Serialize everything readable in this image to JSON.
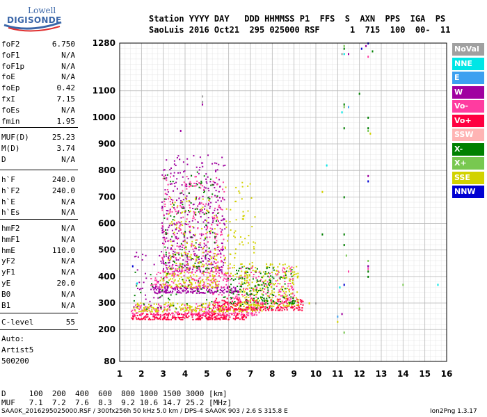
{
  "logo": {
    "line1": "Lowell",
    "line2": "DIGISONDE"
  },
  "header": {
    "line1": "Station YYYY DAY   DDD HHMMSS P1  FFS  S  AXN  PPS  IGA  PS",
    "line2": "SaoLuis 2016 Oct21  295 025000 RSF      1  715  100  00-  11"
  },
  "params_group1": [
    {
      "name": "foF2",
      "value": "6.750"
    },
    {
      "name": "foF1",
      "value": "N/A"
    },
    {
      "name": "foF1p",
      "value": "N/A"
    },
    {
      "name": "foE",
      "value": "N/A"
    },
    {
      "name": "foEp",
      "value": "0.42"
    },
    {
      "name": "fxI",
      "value": "7.15"
    },
    {
      "name": "foEs",
      "value": "N/A"
    },
    {
      "name": "fmin",
      "value": "1.95"
    }
  ],
  "params_group2": [
    {
      "name": "MUF(D)",
      "value": "25.23"
    },
    {
      "name": "M(D)",
      "value": "3.74"
    },
    {
      "name": "D",
      "value": "N/A"
    }
  ],
  "params_group3": [
    {
      "name": "h`F",
      "value": "240.0"
    },
    {
      "name": "h`F2",
      "value": "240.0"
    },
    {
      "name": "h`E",
      "value": "N/A"
    },
    {
      "name": "h`Es",
      "value": "N/A"
    }
  ],
  "params_group4": [
    {
      "name": "hmF2",
      "value": "N/A"
    },
    {
      "name": "hmF1",
      "value": "N/A"
    },
    {
      "name": "hmE",
      "value": "110.0"
    },
    {
      "name": "yF2",
      "value": "N/A"
    },
    {
      "name": "yF1",
      "value": "N/A"
    },
    {
      "name": "yE",
      "value": "20.0"
    },
    {
      "name": "B0",
      "value": "N/A"
    },
    {
      "name": "B1",
      "value": "N/A"
    }
  ],
  "clevel": {
    "name": "C-level",
    "value": "55"
  },
  "autoscale": {
    "line1": "Auto:",
    "line2": "Artist5",
    "line3": "500200"
  },
  "legend": [
    {
      "label": "NoVal",
      "color": "#a0a0a0"
    },
    {
      "label": "NNE",
      "color": "#00e6e6"
    },
    {
      "label": "E",
      "color": "#3ca0f0"
    },
    {
      "label": "W",
      "color": "#a000a0"
    },
    {
      "label": "Vo-",
      "color": "#ff3ca0"
    },
    {
      "label": "Vo+",
      "color": "#ff0040"
    },
    {
      "label": "SSW",
      "color": "#ffb4b4"
    },
    {
      "label": "X-",
      "color": "#008000"
    },
    {
      "label": "X+",
      "color": "#78c850"
    },
    {
      "label": "SSE",
      "color": "#d2d200"
    },
    {
      "label": "NNW",
      "color": "#0000d2"
    }
  ],
  "footer": {
    "d_line": "D     100  200  400  600  800 1000 1500 3000 [km]",
    "muf_line": "MUF   7.1  7.2  7.6  8.3  9.2 10.6 14.7 25.2 [MHz]",
    "provenance": "SAA0K_2016295025000.RSF / 300fx256h 50 kHz 5.0 km / DPS-4 SAA0K 903 / 2.6 S 315.8 E",
    "version": "Ion2Png 1.3.17"
  },
  "chart_data": {
    "type": "scatter",
    "x_ticks": [
      1,
      2,
      3,
      4,
      5,
      6,
      7,
      8,
      9,
      10,
      11,
      12,
      13,
      14,
      15,
      16
    ],
    "y_ticks": [
      80,
      200,
      300,
      400,
      500,
      600,
      700,
      800,
      900,
      1000,
      1100,
      1280
    ],
    "x_range": [
      1,
      16
    ],
    "y_range": [
      80,
      1280
    ],
    "grid": true,
    "legend_position": "right",
    "regions": [
      {
        "series": "Vo+",
        "x": [
          1.5,
          6.8
        ],
        "y": [
          240,
          265
        ],
        "count": 260
      },
      {
        "series": "Vo-",
        "x": [
          1.5,
          7.5
        ],
        "y": [
          255,
          300
        ],
        "count": 240
      },
      {
        "series": "SSE",
        "x": [
          1.6,
          7.5
        ],
        "y": [
          270,
          305
        ],
        "count": 200
      },
      {
        "series": "Vo+",
        "x": [
          5.2,
          9.4
        ],
        "y": [
          275,
          320
        ],
        "count": 200
      },
      {
        "series": "SSE",
        "x": [
          6.5,
          9.2
        ],
        "y": [
          290,
          450
        ],
        "count": 240
      },
      {
        "series": "Vo-",
        "x": [
          5.0,
          9.0
        ],
        "y": [
          300,
          440
        ],
        "count": 180
      },
      {
        "series": "X-",
        "x": [
          6.0,
          9.0
        ],
        "y": [
          300,
          440
        ],
        "count": 120
      },
      {
        "series": "W",
        "x": [
          2.4,
          6.5
        ],
        "y": [
          340,
          365
        ],
        "count": 180
      },
      {
        "series": "Vo-",
        "x": [
          2.4,
          6.0
        ],
        "y": [
          360,
          420
        ],
        "count": 140
      },
      {
        "series": "SSE",
        "x": [
          2.8,
          5.5
        ],
        "y": [
          360,
          420
        ],
        "count": 100
      },
      {
        "series": "W",
        "x": [
          2.9,
          5.8
        ],
        "y": [
          420,
          860
        ],
        "count": 420
      },
      {
        "series": "Vo-",
        "x": [
          2.9,
          5.8
        ],
        "y": [
          420,
          780
        ],
        "count": 260
      },
      {
        "series": "X-",
        "x": [
          3.0,
          5.5
        ],
        "y": [
          430,
          800
        ],
        "count": 100
      },
      {
        "series": "SSE",
        "x": [
          3.2,
          5.5
        ],
        "y": [
          430,
          700
        ],
        "count": 120
      },
      {
        "series": "SSE",
        "x": [
          5.8,
          7.2
        ],
        "y": [
          400,
          760
        ],
        "count": 80
      },
      {
        "series": "W",
        "x": [
          1.5,
          3.0
        ],
        "y": [
          280,
          500
        ],
        "count": 40
      },
      {
        "series": "X-",
        "x": [
          1.5,
          8.0
        ],
        "y": [
          280,
          440
        ],
        "count": 80
      }
    ],
    "points": [
      {
        "series": "NNE",
        "x": 11.2,
        "y": 1020
      },
      {
        "series": "NNE",
        "x": 11.3,
        "y": 1240
      },
      {
        "series": "NNE",
        "x": 10.5,
        "y": 820
      },
      {
        "series": "NNE",
        "x": 11.1,
        "y": 360
      },
      {
        "series": "NNE",
        "x": 15.6,
        "y": 370
      },
      {
        "series": "NNE",
        "x": 1.8,
        "y": 375
      },
      {
        "series": "X-",
        "x": 11.3,
        "y": 1260
      },
      {
        "series": "X-",
        "x": 11.3,
        "y": 1050
      },
      {
        "series": "X-",
        "x": 11.3,
        "y": 960
      },
      {
        "series": "X-",
        "x": 11.3,
        "y": 700
      },
      {
        "series": "X-",
        "x": 11.3,
        "y": 560
      },
      {
        "series": "X-",
        "x": 11.3,
        "y": 520
      },
      {
        "series": "X-",
        "x": 12.0,
        "y": 1090
      },
      {
        "series": "X-",
        "x": 12.4,
        "y": 1000
      },
      {
        "series": "X-",
        "x": 12.4,
        "y": 960
      },
      {
        "series": "X-",
        "x": 12.4,
        "y": 420
      },
      {
        "series": "X-",
        "x": 12.4,
        "y": 400
      },
      {
        "series": "X-",
        "x": 10.3,
        "y": 560
      },
      {
        "series": "X-",
        "x": 12.6,
        "y": 1250
      },
      {
        "series": "X+",
        "x": 11.3,
        "y": 1270
      },
      {
        "series": "X+",
        "x": 11.3,
        "y": 1040
      },
      {
        "series": "X+",
        "x": 11.4,
        "y": 480
      },
      {
        "series": "X+",
        "x": 12.4,
        "y": 950
      },
      {
        "series": "X+",
        "x": 12.4,
        "y": 460
      },
      {
        "series": "X+",
        "x": 11.3,
        "y": 190
      },
      {
        "series": "X+",
        "x": 14.0,
        "y": 370
      },
      {
        "series": "X+",
        "x": 12.0,
        "y": 280
      },
      {
        "series": "NNW",
        "x": 12.4,
        "y": 1280
      },
      {
        "series": "NNW",
        "x": 12.4,
        "y": 760
      },
      {
        "series": "NNW",
        "x": 11.3,
        "y": 370
      },
      {
        "series": "NNW",
        "x": 12.4,
        "y": 440
      },
      {
        "series": "NNW",
        "x": 1.6,
        "y": 440
      },
      {
        "series": "NNW",
        "x": 12.1,
        "y": 1260
      },
      {
        "series": "W",
        "x": 12.3,
        "y": 1270
      },
      {
        "series": "W",
        "x": 12.4,
        "y": 440
      },
      {
        "series": "W",
        "x": 4.8,
        "y": 1050
      },
      {
        "series": "W",
        "x": 12.4,
        "y": 780
      },
      {
        "series": "W",
        "x": 11.2,
        "y": 260
      },
      {
        "series": "W",
        "x": 11.5,
        "y": 1240
      },
      {
        "series": "W",
        "x": 3.8,
        "y": 950
      },
      {
        "series": "Vo-",
        "x": 12.4,
        "y": 430
      },
      {
        "series": "Vo-",
        "x": 11.5,
        "y": 420
      },
      {
        "series": "Vo-",
        "x": 12.4,
        "y": 1230
      },
      {
        "series": "E",
        "x": 11.5,
        "y": 1040
      },
      {
        "series": "E",
        "x": 11.0,
        "y": 250
      },
      {
        "series": "SSE",
        "x": 11.0,
        "y": 230
      },
      {
        "series": "SSE",
        "x": 10.3,
        "y": 720
      },
      {
        "series": "SSE",
        "x": 12.5,
        "y": 940
      },
      {
        "series": "SSE",
        "x": 9.7,
        "y": 300
      },
      {
        "series": "NoVal",
        "x": 4.8,
        "y": 1080
      },
      {
        "series": "NoVal",
        "x": 4.8,
        "y": 1060
      },
      {
        "series": "NoVal",
        "x": 11.2,
        "y": 1240
      },
      {
        "series": "NoVal",
        "x": 10.0,
        "y": 300
      }
    ]
  }
}
